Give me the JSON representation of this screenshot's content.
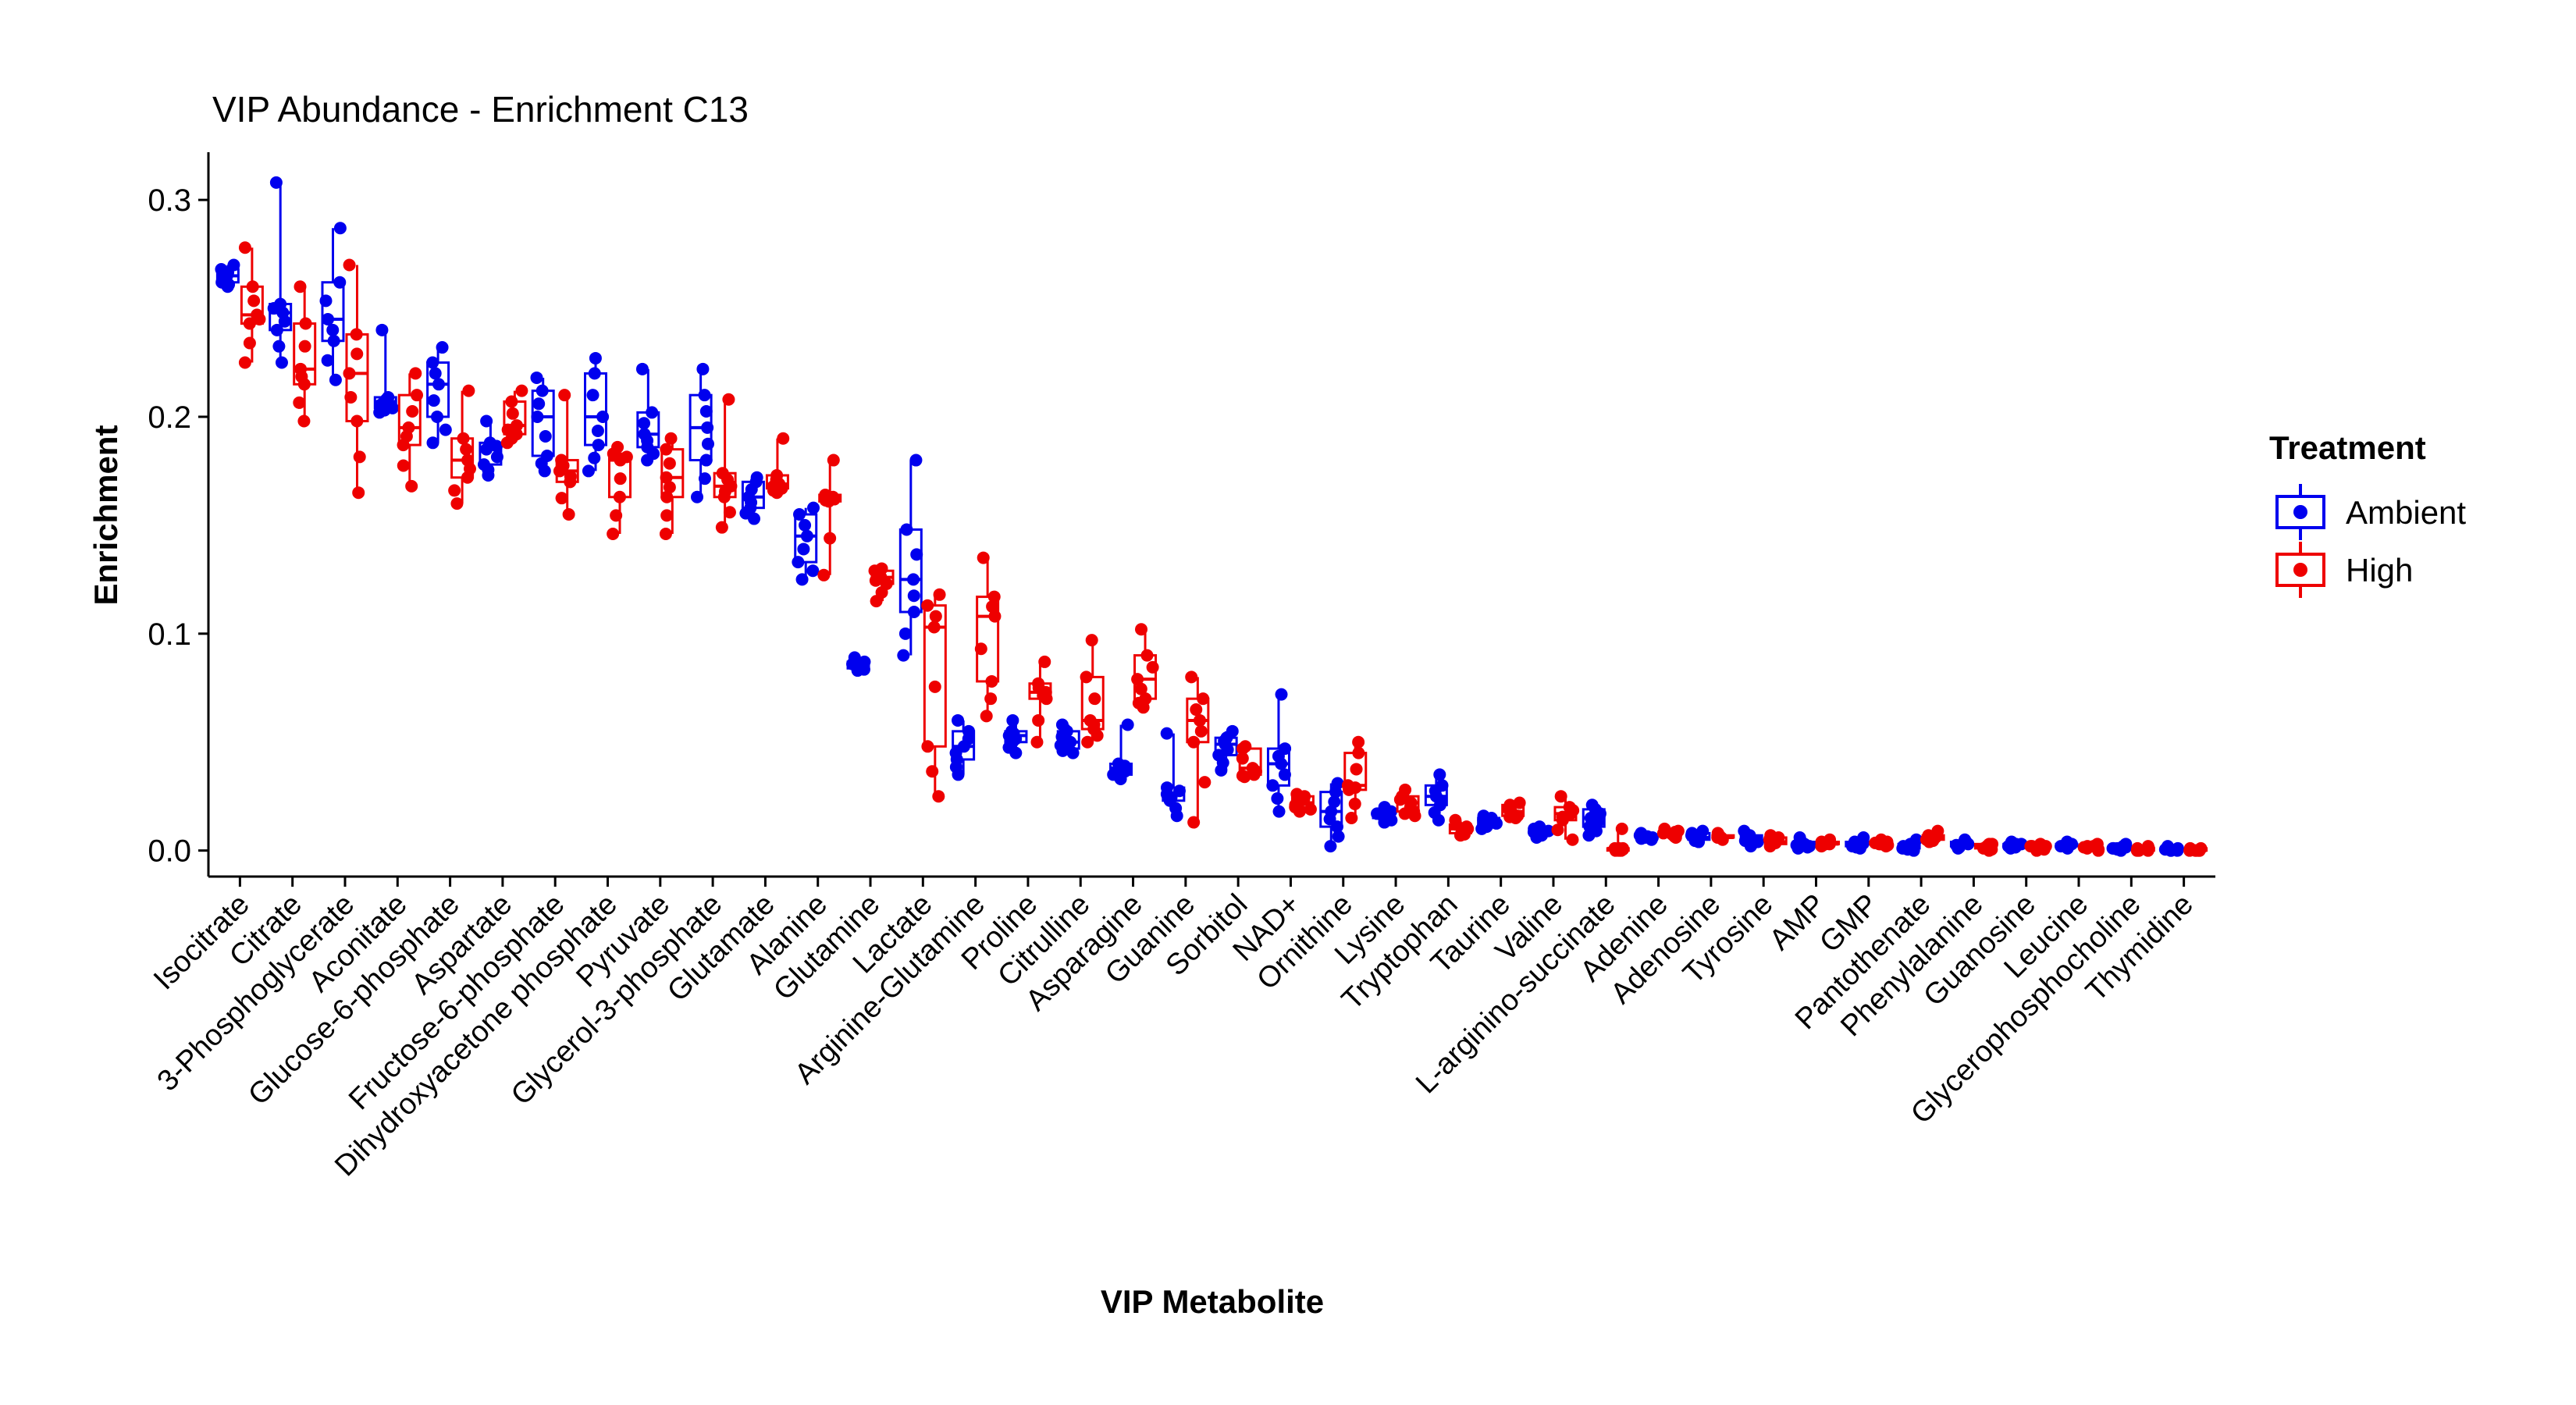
{
  "chart_data": {
    "type": "boxplot",
    "title": "VIP Abundance - Enrichment C13",
    "xlabel": "VIP Metabolite",
    "ylabel": "Enrichment",
    "ylim": [
      -0.012,
      0.322
    ],
    "yticks": [
      0.0,
      0.1,
      0.2,
      0.3
    ],
    "ytick_labels": [
      "0.0",
      "0.1",
      "0.2",
      "0.3"
    ],
    "grid": false,
    "legend": {
      "title": "Treatment",
      "position": "right",
      "entries": [
        {
          "label": "Ambient",
          "color": "#0000ee"
        },
        {
          "label": "High",
          "color": "#ee0000"
        }
      ]
    },
    "categories": [
      "Isocitrate",
      "Citrate",
      "3-Phosphoglycerate",
      "Aconitate",
      "Glucose-6-phosphate",
      "Aspartate",
      "Fructose-6-phosphate",
      "Dihydroxyacetone phosphate",
      "Pyruvate",
      "Glycerol-3-phosphate",
      "Glutamate",
      "Alanine",
      "Glutamine",
      "Lactate",
      "Arginine-Glutamine",
      "Proline",
      "Citrulline",
      "Asparagine",
      "Guanine",
      "Sorbitol",
      "NAD+",
      "Ornithine",
      "Lysine",
      "Tryptophan",
      "Taurine",
      "Valine",
      "L-arginino-succinate",
      "Adenine",
      "Adenosine",
      "Tyrosine",
      "AMP",
      "GMP",
      "Pantothenate",
      "Phenylalanine",
      "Guanosine",
      "Leucine",
      "Glycerophosphocholine",
      "Thymidine"
    ],
    "series": [
      {
        "name": "Ambient",
        "color": "#0000ee",
        "boxes": [
          [
            0.26,
            0.262,
            0.265,
            0.268,
            0.27
          ],
          [
            0.225,
            0.24,
            0.248,
            0.252,
            0.308
          ],
          [
            0.217,
            0.235,
            0.245,
            0.262,
            0.287
          ],
          [
            0.202,
            0.204,
            0.207,
            0.209,
            0.24
          ],
          [
            0.188,
            0.2,
            0.215,
            0.225,
            0.232
          ],
          [
            0.173,
            0.178,
            0.185,
            0.188,
            0.198
          ],
          [
            0.175,
            0.182,
            0.2,
            0.212,
            0.218
          ],
          [
            0.175,
            0.187,
            0.2,
            0.22,
            0.227
          ],
          [
            0.18,
            0.186,
            0.192,
            0.202,
            0.222
          ],
          [
            0.163,
            0.18,
            0.195,
            0.21,
            0.222
          ],
          [
            0.153,
            0.158,
            0.163,
            0.17,
            0.172
          ],
          [
            0.125,
            0.133,
            0.145,
            0.155,
            0.158
          ],
          [
            0.083,
            0.084,
            0.086,
            0.087,
            0.089
          ],
          [
            0.09,
            0.11,
            0.125,
            0.148,
            0.18
          ],
          [
            0.035,
            0.042,
            0.048,
            0.055,
            0.06
          ],
          [
            0.045,
            0.05,
            0.053,
            0.055,
            0.06
          ],
          [
            0.045,
            0.047,
            0.05,
            0.055,
            0.058
          ],
          [
            0.033,
            0.035,
            0.038,
            0.04,
            0.058
          ],
          [
            0.016,
            0.023,
            0.026,
            0.029,
            0.054
          ],
          [
            0.037,
            0.044,
            0.049,
            0.052,
            0.055
          ],
          [
            0.018,
            0.03,
            0.04,
            0.047,
            0.072
          ],
          [
            0.002,
            0.011,
            0.018,
            0.027,
            0.031
          ],
          [
            0.013,
            0.015,
            0.016,
            0.018,
            0.02
          ],
          [
            0.014,
            0.021,
            0.025,
            0.03,
            0.035
          ],
          [
            0.01,
            0.012,
            0.013,
            0.015,
            0.016
          ],
          [
            0.006,
            0.008,
            0.009,
            0.01,
            0.011
          ],
          [
            0.007,
            0.011,
            0.015,
            0.019,
            0.021
          ],
          [
            0.005,
            0.006,
            0.006,
            0.007,
            0.008
          ],
          [
            0.004,
            0.005,
            0.006,
            0.008,
            0.009
          ],
          [
            0.002,
            0.004,
            0.005,
            0.007,
            0.009
          ],
          [
            0.001,
            0.002,
            0.003,
            0.004,
            0.006
          ],
          [
            0.001,
            0.002,
            0.003,
            0.004,
            0.006
          ],
          [
            0.0,
            0.001,
            0.002,
            0.003,
            0.005
          ],
          [
            0.001,
            0.002,
            0.003,
            0.004,
            0.005
          ],
          [
            0.001,
            0.002,
            0.003,
            0.003,
            0.004
          ],
          [
            0.001,
            0.002,
            0.003,
            0.003,
            0.004
          ],
          [
            0.0,
            0.001,
            0.001,
            0.002,
            0.003
          ],
          [
            0.0,
            0.0,
            0.001,
            0.001,
            0.002
          ]
        ]
      },
      {
        "name": "High",
        "color": "#ee0000",
        "boxes": [
          [
            0.225,
            0.243,
            0.247,
            0.26,
            0.278
          ],
          [
            0.198,
            0.215,
            0.222,
            0.243,
            0.26
          ],
          [
            0.165,
            0.198,
            0.22,
            0.238,
            0.27
          ],
          [
            0.168,
            0.187,
            0.195,
            0.21,
            0.22
          ],
          [
            0.16,
            0.172,
            0.18,
            0.19,
            0.212
          ],
          [
            0.188,
            0.192,
            0.196,
            0.207,
            0.212
          ],
          [
            0.155,
            0.17,
            0.175,
            0.18,
            0.21
          ],
          [
            0.146,
            0.163,
            0.18,
            0.183,
            0.186
          ],
          [
            0.146,
            0.163,
            0.172,
            0.185,
            0.19
          ],
          [
            0.149,
            0.163,
            0.168,
            0.174,
            0.208
          ],
          [
            0.165,
            0.167,
            0.169,
            0.173,
            0.19
          ],
          [
            0.127,
            0.161,
            0.162,
            0.164,
            0.18
          ],
          [
            0.115,
            0.123,
            0.126,
            0.129,
            0.13
          ],
          [
            0.025,
            0.048,
            0.103,
            0.113,
            0.118
          ],
          [
            0.062,
            0.078,
            0.108,
            0.117,
            0.135
          ],
          [
            0.05,
            0.07,
            0.073,
            0.077,
            0.087
          ],
          [
            0.05,
            0.056,
            0.06,
            0.08,
            0.097
          ],
          [
            0.066,
            0.07,
            0.079,
            0.09,
            0.102
          ],
          [
            0.013,
            0.05,
            0.06,
            0.07,
            0.08
          ],
          [
            0.034,
            0.035,
            0.038,
            0.047,
            0.048
          ],
          [
            0.018,
            0.02,
            0.022,
            0.025,
            0.026
          ],
          [
            0.015,
            0.028,
            0.03,
            0.045,
            0.05
          ],
          [
            0.016,
            0.018,
            0.022,
            0.025,
            0.028
          ],
          [
            0.007,
            0.008,
            0.01,
            0.012,
            0.014
          ],
          [
            0.015,
            0.016,
            0.018,
            0.021,
            0.022
          ],
          [
            0.005,
            0.014,
            0.017,
            0.02,
            0.025
          ],
          [
            0.0,
            0.0,
            0.001,
            0.001,
            0.01
          ],
          [
            0.006,
            0.007,
            0.008,
            0.009,
            0.01
          ],
          [
            0.005,
            0.006,
            0.006,
            0.007,
            0.008
          ],
          [
            0.002,
            0.003,
            0.004,
            0.006,
            0.007
          ],
          [
            0.002,
            0.003,
            0.003,
            0.004,
            0.005
          ],
          [
            0.002,
            0.003,
            0.003,
            0.004,
            0.005
          ],
          [
            0.004,
            0.005,
            0.006,
            0.007,
            0.009
          ],
          [
            0.0,
            0.001,
            0.002,
            0.003,
            0.003
          ],
          [
            0.0,
            0.001,
            0.002,
            0.002,
            0.003
          ],
          [
            0.0,
            0.001,
            0.002,
            0.002,
            0.003
          ],
          [
            0.0,
            0.0,
            0.001,
            0.001,
            0.002
          ],
          [
            0.0,
            0.0,
            0.0,
            0.001,
            0.001
          ]
        ]
      }
    ]
  }
}
